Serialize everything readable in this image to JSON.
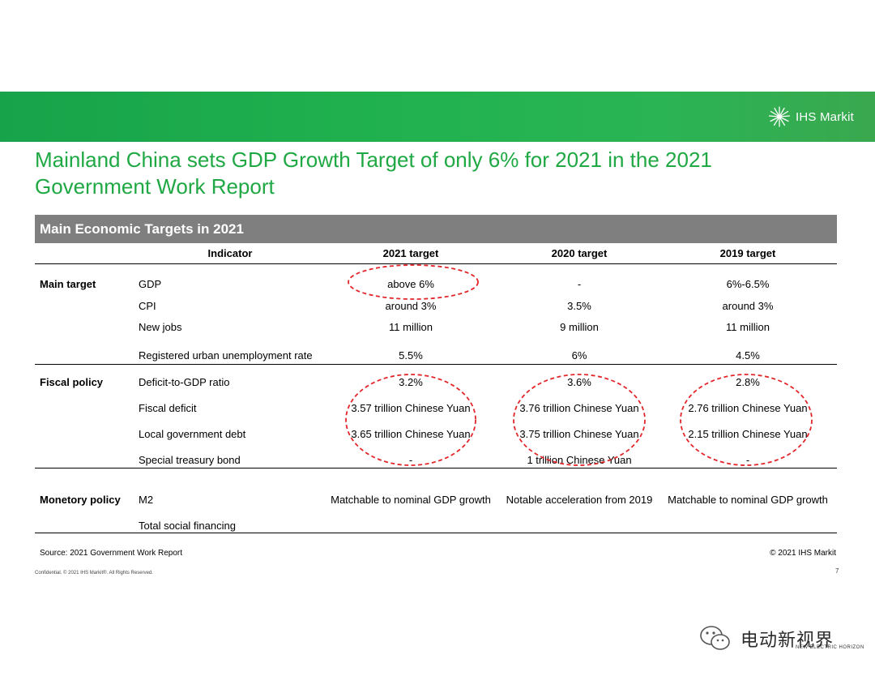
{
  "brand": {
    "logo_text": "IHS Markit",
    "accent_color": "#1fa843",
    "banner_color": "#21b24f"
  },
  "slide": {
    "title": "Mainland China sets GDP Growth Target of only 6% for 2021 in the 2021 Government Work Report",
    "table_title": "Main Economic Targets in 2021"
  },
  "table": {
    "columns": [
      "Indicator",
      "2021 target",
      "2020 target",
      "2019 target"
    ],
    "sections": [
      {
        "name": "Main target",
        "rows": [
          {
            "indicator": "GDP",
            "t2021": "above 6%",
            "t2020": "-",
            "t2019": "6%-6.5%"
          },
          {
            "indicator": "CPI",
            "t2021": "around 3%",
            "t2020": "3.5%",
            "t2019": "around 3%"
          },
          {
            "indicator": "New jobs",
            "t2021": "11 million",
            "t2020": "9 million",
            "t2019": "11 million"
          },
          {
            "indicator": "Registered urban unemployment rate",
            "t2021": "5.5%",
            "t2020": "6%",
            "t2019": "4.5%"
          }
        ]
      },
      {
        "name": "Fiscal policy",
        "rows": [
          {
            "indicator": "Deficit-to-GDP ratio",
            "t2021": "3.2%",
            "t2020": "3.6%",
            "t2019": "2.8%"
          },
          {
            "indicator": "Fiscal deficit",
            "t2021": "3.57 trillion Chinese Yuan",
            "t2020": "3.76 trillion Chinese Yuan",
            "t2019": "2.76 trillion Chinese Yuan"
          },
          {
            "indicator": "Local government debt",
            "t2021": "3.65 trillion Chinese Yuan",
            "t2020": "3.75 trillion Chinese Yuan",
            "t2019": "2.15 trillion Chinese Yuan"
          },
          {
            "indicator": "Special treasury bond",
            "t2021": "-",
            "t2020": "1 trillion Chinese Yuan",
            "t2019": "-"
          }
        ]
      },
      {
        "name": "Monetory policy",
        "rows": [
          {
            "indicator": "M2",
            "t2021": "Matchable to nominal GDP growth",
            "t2020": "Notable acceleration from 2019",
            "t2019": "Matchable to nominal GDP growth"
          },
          {
            "indicator": "Total social financing",
            "t2021": "",
            "t2020": "",
            "t2019": ""
          }
        ]
      }
    ]
  },
  "annotation": {
    "color": "#e3262a"
  },
  "footer": {
    "source": "Source: 2021 Government Work Report",
    "copyright": "© 2021 IHS Markit",
    "confidential": "Confidential. © 2021 IHS Markit®. All Rights Reserved.",
    "page_number": "7"
  },
  "watermark": {
    "text": "电动新视界",
    "subtext": "NEW ELECTRIC HORIZON"
  }
}
